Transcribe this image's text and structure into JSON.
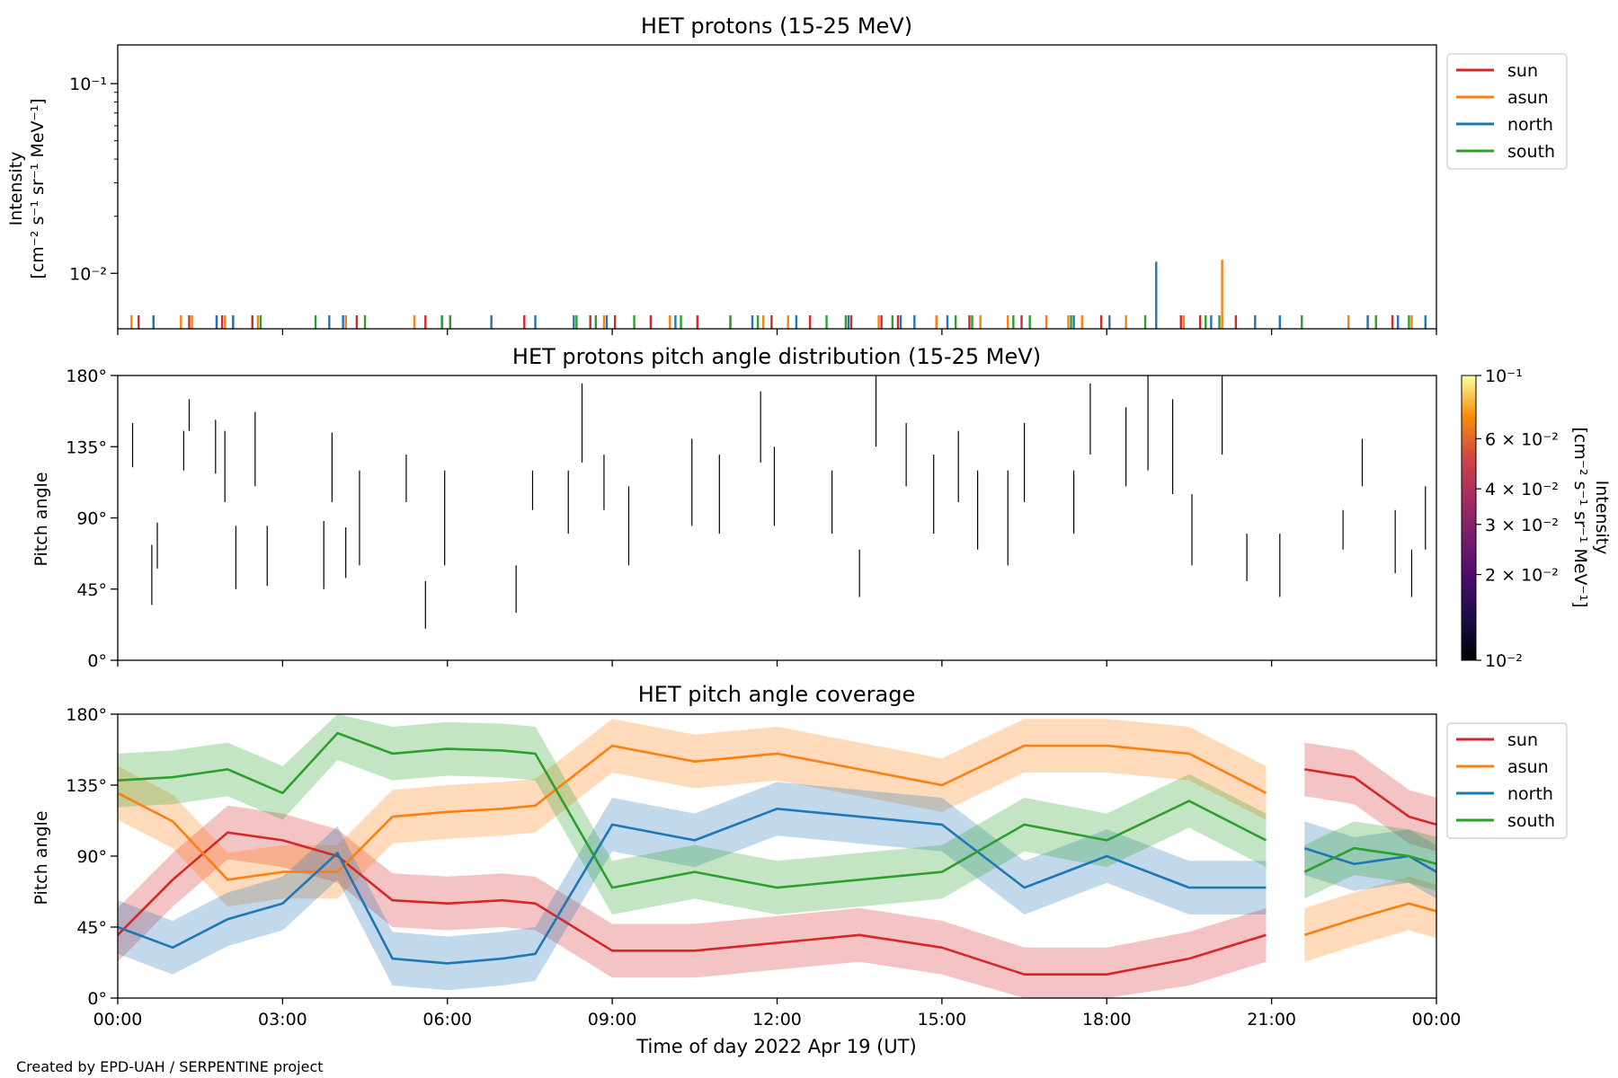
{
  "figure": {
    "credit": "Created by EPD-UAH / SERPENTINE project",
    "xlabel": "Time of day 2022 Apr 19 (UT)",
    "x_ticks": [
      "00:00",
      "03:00",
      "06:00",
      "09:00",
      "12:00",
      "15:00",
      "18:00",
      "21:00",
      "00:00"
    ]
  },
  "colors": {
    "sun": "#d62728",
    "asun": "#ff7f0e",
    "north": "#1f77b4",
    "south": "#2ca02c"
  },
  "chart_data": [
    {
      "id": "intensity",
      "type": "bar",
      "title": "HET protons (15-25 MeV)",
      "ylabel_line1": "Intensity",
      "ylabel_line2": "[cm⁻² s⁻¹ sr⁻¹ MeV⁻¹]",
      "yscale": "log",
      "ylim": [
        0.0051,
        0.16
      ],
      "xlim_hours": [
        0,
        24
      ],
      "y_ticks": [
        "10⁻¹",
        "10⁻²"
      ],
      "y_tick_values": [
        0.1,
        0.01
      ],
      "legend": [
        "sun",
        "asun",
        "north",
        "south"
      ],
      "legend_placement": "outside top-right",
      "spikes": {
        "sun": [
          0.38,
          0.65,
          1.3,
          1.8,
          1.9,
          2.1,
          2.45,
          4.15,
          4.35,
          5.6,
          7.4,
          8.6,
          9.05,
          9.7,
          10.55,
          11.15,
          11.9,
          12.6,
          13.35,
          13.9,
          14.2,
          14.9,
          15.5,
          16.45,
          17.9,
          19.35,
          19.7,
          20.35,
          23.2
        ],
        "asun": [
          0.25,
          1.15,
          1.35,
          1.95,
          2.55,
          4.15,
          5.4,
          6.05,
          8.85,
          10.05,
          11.75,
          12.2,
          13.85,
          14.9,
          15.7,
          16.2,
          16.9,
          17.3,
          17.55,
          18.35,
          19.4,
          22.4,
          22.75,
          23.55
        ],
        "north": [
          0.65,
          1.8,
          2.1,
          3.85,
          4.1,
          5.9,
          6.8,
          7.6,
          8.3,
          8.9,
          10.15,
          11.55,
          12.35,
          13.3,
          14.25,
          14.5,
          15.1,
          17.4,
          18.05,
          19.9,
          20.7,
          21.15,
          22.75,
          23.3,
          23.8
        ],
        "south": [
          2.6,
          3.6,
          4.5,
          5.9,
          6.05,
          8.35,
          8.7,
          9.4,
          10.25,
          11.15,
          11.65,
          12.9,
          13.25,
          14.1,
          15.25,
          15.55,
          16.3,
          16.6,
          17.35,
          18.7,
          19.8,
          20.05,
          21.55,
          22.9,
          23.5
        ]
      },
      "peaks": [
        {
          "channel": "north",
          "hour": 18.9,
          "value": 0.0115
        },
        {
          "channel": "asun",
          "hour": 20.1,
          "value": 0.0118
        }
      ]
    },
    {
      "id": "pad",
      "type": "heatmap",
      "title": "HET protons pitch angle distribution (15-25 MeV)",
      "ylabel": "Pitch angle",
      "ylim": [
        0,
        180
      ],
      "y_ticks": [
        "0°",
        "45°",
        "90°",
        "135°",
        "180°"
      ],
      "y_tick_values": [
        0,
        45,
        90,
        135,
        180
      ],
      "colorbar": {
        "label_line1": "Intensity",
        "label_line2": "[cm⁻² s⁻¹ sr⁻¹ MeV⁻¹]",
        "scale": "log",
        "range": [
          0.01,
          0.1
        ],
        "colormap": "inferno",
        "ticks": [
          {
            "value": 0.1,
            "label": "10⁻¹"
          },
          {
            "value": 0.06,
            "label": "6 × 10⁻²"
          },
          {
            "value": 0.04,
            "label": "4 × 10⁻²"
          },
          {
            "value": 0.03,
            "label": "3 × 10⁻²"
          },
          {
            "value": 0.02,
            "label": "2 × 10⁻²"
          },
          {
            "value": 0.01,
            "label": "10⁻²"
          }
        ]
      },
      "segments": [
        [
          0.27,
          122,
          150
        ],
        [
          0.62,
          35,
          73
        ],
        [
          0.72,
          58,
          87
        ],
        [
          1.2,
          120,
          145
        ],
        [
          1.3,
          145,
          165
        ],
        [
          1.78,
          118,
          152
        ],
        [
          1.95,
          100,
          145
        ],
        [
          2.15,
          45,
          85
        ],
        [
          2.5,
          110,
          157
        ],
        [
          2.72,
          47,
          85
        ],
        [
          3.75,
          45,
          88
        ],
        [
          3.9,
          100,
          144
        ],
        [
          4.15,
          52,
          84
        ],
        [
          4.4,
          60,
          120
        ],
        [
          5.25,
          100,
          130
        ],
        [
          5.6,
          20,
          50
        ],
        [
          5.95,
          60,
          120
        ],
        [
          7.25,
          30,
          60
        ],
        [
          7.55,
          95,
          120
        ],
        [
          8.2,
          80,
          120
        ],
        [
          8.45,
          125,
          175
        ],
        [
          8.85,
          95,
          130
        ],
        [
          9.3,
          60,
          110
        ],
        [
          10.45,
          85,
          140
        ],
        [
          10.95,
          80,
          130
        ],
        [
          11.7,
          125,
          170
        ],
        [
          11.95,
          85,
          135
        ],
        [
          13.0,
          80,
          120
        ],
        [
          13.5,
          40,
          70
        ],
        [
          13.8,
          135,
          180
        ],
        [
          14.35,
          110,
          150
        ],
        [
          14.85,
          80,
          130
        ],
        [
          15.3,
          100,
          145
        ],
        [
          15.65,
          70,
          120
        ],
        [
          16.2,
          60,
          120
        ],
        [
          16.5,
          100,
          150
        ],
        [
          17.4,
          80,
          120
        ],
        [
          17.7,
          130,
          175
        ],
        [
          18.35,
          110,
          160
        ],
        [
          18.75,
          120,
          180
        ],
        [
          19.2,
          105,
          165
        ],
        [
          19.55,
          60,
          105
        ],
        [
          20.1,
          130,
          180
        ],
        [
          20.55,
          50,
          80
        ],
        [
          21.15,
          40,
          80
        ],
        [
          22.3,
          70,
          95
        ],
        [
          22.65,
          110,
          140
        ],
        [
          23.25,
          55,
          95
        ],
        [
          23.55,
          40,
          70
        ],
        [
          23.8,
          70,
          110
        ]
      ]
    },
    {
      "id": "coverage",
      "type": "line",
      "title": "HET pitch angle coverage",
      "ylabel": "Pitch angle",
      "ylim": [
        0,
        180
      ],
      "y_ticks": [
        "0°",
        "45°",
        "90°",
        "135°",
        "180°"
      ],
      "y_tick_values": [
        0,
        45,
        90,
        135,
        180
      ],
      "legend": [
        "sun",
        "asun",
        "north",
        "south"
      ],
      "legend_placement": "outside top-right",
      "band_halfwidth_deg": 17,
      "data_gap_hours": [
        20.95,
        21.55
      ],
      "series": [
        {
          "name": "sun",
          "hours": [
            0,
            1,
            2,
            3,
            4,
            5,
            6,
            7,
            7.6,
            9,
            10.5,
            12,
            13.5,
            15,
            16.5,
            18,
            19.5,
            20.9,
            21.6,
            22.5,
            23.5,
            24
          ],
          "values": [
            40,
            75,
            105,
            100,
            90,
            62,
            60,
            62,
            60,
            30,
            30,
            35,
            40,
            32,
            15,
            15,
            25,
            40,
            145,
            140,
            115,
            110
          ]
        },
        {
          "name": "asun",
          "hours": [
            0,
            1,
            2,
            3,
            4,
            5,
            6,
            7,
            7.6,
            9,
            10.5,
            12,
            13.5,
            15,
            16.5,
            18,
            19.5,
            20.9,
            21.6,
            22.5,
            23.5,
            24
          ],
          "values": [
            130,
            112,
            75,
            80,
            80,
            115,
            118,
            120,
            122,
            160,
            150,
            155,
            145,
            135,
            160,
            160,
            155,
            130,
            40,
            50,
            60,
            55
          ]
        },
        {
          "name": "north",
          "hours": [
            0,
            1,
            2,
            3,
            4,
            5,
            6,
            7,
            7.6,
            9,
            10.5,
            12,
            13.5,
            15,
            16.5,
            18,
            19.5,
            20.9,
            21.6,
            22.5,
            23.5,
            24
          ],
          "values": [
            45,
            32,
            50,
            60,
            92,
            25,
            22,
            25,
            28,
            110,
            100,
            120,
            115,
            110,
            70,
            90,
            70,
            70,
            95,
            85,
            90,
            80
          ]
        },
        {
          "name": "south",
          "hours": [
            0,
            1,
            2,
            3,
            4,
            5,
            6,
            7,
            7.6,
            9,
            10.5,
            12,
            13.5,
            15,
            16.5,
            18,
            19.5,
            20.9,
            21.6,
            22.5,
            23.5,
            24
          ],
          "values": [
            138,
            140,
            145,
            130,
            168,
            155,
            158,
            157,
            155,
            70,
            80,
            70,
            75,
            80,
            110,
            100,
            125,
            100,
            80,
            95,
            90,
            85
          ]
        }
      ]
    }
  ]
}
